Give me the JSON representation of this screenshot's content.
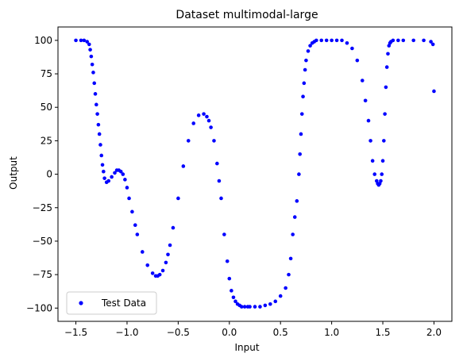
{
  "chart_data": {
    "type": "scatter",
    "title": "Dataset multimodal-large",
    "xlabel": "Input",
    "ylabel": "Output",
    "xlim": [
      -1.675,
      2.175
    ],
    "ylim": [
      -109.9,
      110.0
    ],
    "xticks": [
      -1.5,
      -1.0,
      -0.5,
      0.0,
      0.5,
      1.0,
      1.5,
      2.0
    ],
    "xtick_labels": [
      "−1.5",
      "−1.0",
      "−0.5",
      "0.0",
      "0.5",
      "1.0",
      "1.5",
      "2.0"
    ],
    "yticks": [
      -100,
      -75,
      -50,
      -25,
      0,
      25,
      50,
      75,
      100
    ],
    "ytick_labels": [
      "−100",
      "−75",
      "−50",
      "−25",
      "0",
      "25",
      "50",
      "75",
      "100"
    ],
    "legend_position": "bottom-left",
    "grid": false,
    "series": [
      {
        "name": "Test Data",
        "color": "#0000ff",
        "x": [
          -1.5,
          -1.45,
          -1.42,
          -1.39,
          -1.37,
          -1.36,
          -1.35,
          -1.34,
          -1.33,
          -1.32,
          -1.31,
          -1.3,
          -1.29,
          -1.28,
          -1.27,
          -1.26,
          -1.25,
          -1.24,
          -1.23,
          -1.22,
          -1.2,
          -1.18,
          -1.15,
          -1.12,
          -1.1,
          -1.08,
          -1.06,
          -1.04,
          -1.02,
          -1.0,
          -0.98,
          -0.95,
          -0.92,
          -0.9,
          -0.85,
          -0.8,
          -0.75,
          -0.72,
          -0.7,
          -0.68,
          -0.65,
          -0.62,
          -0.6,
          -0.58,
          -0.55,
          -0.5,
          -0.45,
          -0.4,
          -0.35,
          -0.3,
          -0.25,
          -0.22,
          -0.2,
          -0.18,
          -0.15,
          -0.12,
          -0.1,
          -0.08,
          -0.05,
          -0.02,
          0.0,
          0.02,
          0.04,
          0.06,
          0.08,
          0.1,
          0.12,
          0.15,
          0.18,
          0.2,
          0.25,
          0.3,
          0.35,
          0.4,
          0.45,
          0.5,
          0.55,
          0.58,
          0.6,
          0.62,
          0.64,
          0.66,
          0.68,
          0.69,
          0.7,
          0.71,
          0.72,
          0.73,
          0.74,
          0.75,
          0.77,
          0.79,
          0.81,
          0.83,
          0.85,
          0.9,
          0.95,
          1.0,
          1.05,
          1.1,
          1.15,
          1.2,
          1.25,
          1.3,
          1.33,
          1.36,
          1.38,
          1.4,
          1.42,
          1.44,
          1.45,
          1.46,
          1.47,
          1.48,
          1.49,
          1.5,
          1.51,
          1.52,
          1.53,
          1.54,
          1.55,
          1.56,
          1.57,
          1.58,
          1.6,
          1.65,
          1.7,
          1.8,
          1.9,
          1.97,
          1.99,
          2.0
        ],
        "y": [
          100,
          100,
          100,
          99,
          97,
          93,
          88,
          82,
          76,
          68,
          60,
          52,
          45,
          37,
          30,
          22,
          14,
          7,
          2,
          -3,
          -6,
          -5,
          -2,
          1,
          3,
          3,
          2,
          0,
          -4,
          -10,
          -18,
          -28,
          -38,
          -45,
          -58,
          -68,
          -74,
          -76,
          -76,
          -75,
          -72,
          -66,
          -60,
          -53,
          -40,
          -18,
          6,
          25,
          38,
          44,
          45,
          43,
          40,
          35,
          25,
          8,
          -5,
          -18,
          -45,
          -65,
          -78,
          -87,
          -92,
          -95,
          -97,
          -98,
          -99,
          -99,
          -99,
          -99,
          -99,
          -99,
          -98,
          -97,
          -95,
          -91,
          -85,
          -75,
          -63,
          -45,
          -32,
          -20,
          0,
          15,
          30,
          45,
          58,
          68,
          78,
          85,
          92,
          96,
          98,
          99,
          100,
          100,
          100,
          100,
          100,
          100,
          98,
          94,
          85,
          70,
          55,
          40,
          25,
          10,
          0,
          -5,
          -7,
          -8,
          -7,
          -5,
          0,
          10,
          25,
          45,
          65,
          80,
          90,
          96,
          98,
          99,
          100,
          100,
          100,
          100,
          100,
          99,
          97,
          62
        ]
      }
    ]
  }
}
